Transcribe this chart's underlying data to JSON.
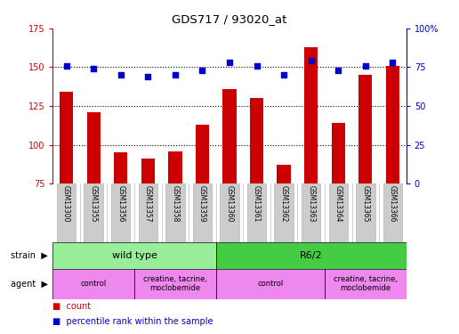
{
  "title": "GDS717 / 93020_at",
  "samples": [
    "GSM13300",
    "GSM13355",
    "GSM13356",
    "GSM13357",
    "GSM13358",
    "GSM13359",
    "GSM13360",
    "GSM13361",
    "GSM13362",
    "GSM13363",
    "GSM13364",
    "GSM13365",
    "GSM13366"
  ],
  "count_values": [
    134,
    121,
    95,
    91,
    96,
    113,
    136,
    130,
    87,
    163,
    114,
    145,
    151
  ],
  "percentile_values": [
    76,
    74,
    70,
    69,
    70,
    73,
    78,
    76,
    70,
    79,
    73,
    76,
    78
  ],
  "ylim_left": [
    75,
    175
  ],
  "ylim_right": [
    0,
    100
  ],
  "yticks_left": [
    75,
    100,
    125,
    150,
    175
  ],
  "yticks_right": [
    0,
    25,
    50,
    75,
    100
  ],
  "hlines": [
    100,
    125,
    150
  ],
  "bar_color": "#cc0000",
  "dot_color": "#0000cc",
  "strain_colors": {
    "wild type": "#99ee99",
    "R6/2": "#44cc44"
  },
  "agent_color": "#ee88ee",
  "strain_groups": [
    {
      "label": "wild type",
      "start": 0,
      "end": 6
    },
    {
      "label": "R6/2",
      "start": 6,
      "end": 13
    }
  ],
  "agent_groups": [
    {
      "label": "control",
      "start": 0,
      "end": 3
    },
    {
      "label": "creatine, tacrine,\nmoclobemide",
      "start": 3,
      "end": 6
    },
    {
      "label": "control",
      "start": 6,
      "end": 10
    },
    {
      "label": "creatine, tacrine,\nmoclobemide",
      "start": 10,
      "end": 13
    }
  ],
  "left_axis_color": "#cc0000",
  "right_axis_color": "#0000cc",
  "bg_color": "#ffffff",
  "grid_color": "#000000",
  "tick_bg": "#cccccc",
  "n_samples": 13
}
